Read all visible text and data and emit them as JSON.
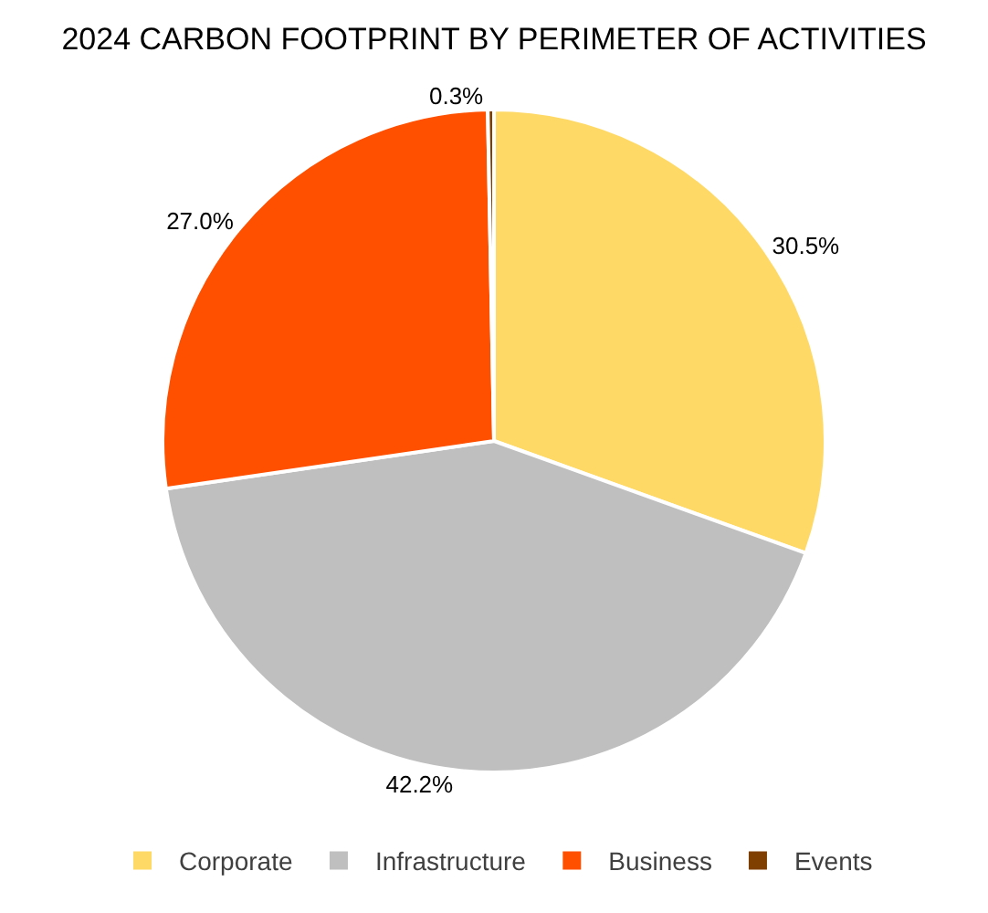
{
  "chart_data": {
    "type": "pie",
    "title": "2024 CARBON FOOTPRINT BY PERIMETER OF ACTIVITIES",
    "categories": [
      "Corporate",
      "Infrastructure",
      "Business",
      "Events"
    ],
    "values": [
      30.5,
      42.2,
      27.0,
      0.3
    ],
    "value_labels": [
      "30.5%",
      "42.2%",
      "27.0%",
      "0.3%"
    ],
    "colors": [
      "#ffd966",
      "#bfbfbf",
      "#ff5000",
      "#7f3f00"
    ],
    "legend": "bottom"
  }
}
